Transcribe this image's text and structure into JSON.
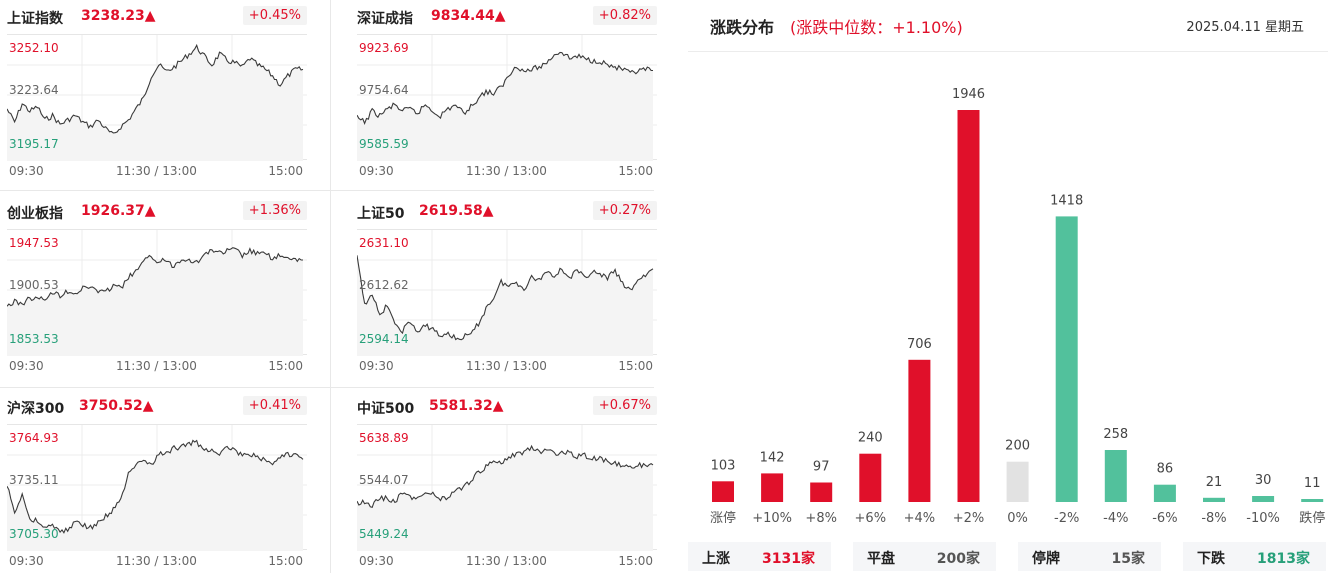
{
  "indices": [
    {
      "name": "上证指数",
      "value": "3238.23▲",
      "change": "+0.45%",
      "high": "3252.10",
      "mid": "3223.64",
      "low": "3195.17",
      "times": [
        "09:30",
        "11:30 / 13:00",
        "15:00"
      ]
    },
    {
      "name": "深证成指",
      "value": "9834.44▲",
      "change": "+0.82%",
      "high": "9923.69",
      "mid": "9754.64",
      "low": "9585.59",
      "times": [
        "09:30",
        "11:30 / 13:00",
        "15:00"
      ]
    },
    {
      "name": "创业板指",
      "value": "1926.37▲",
      "change": "+1.36%",
      "high": "1947.53",
      "mid": "1900.53",
      "low": "1853.53",
      "times": [
        "09:30",
        "11:30 / 13:00",
        "15:00"
      ]
    },
    {
      "name": "上证50",
      "value": "2619.58▲",
      "change": "+0.27%",
      "high": "2631.10",
      "mid": "2612.62",
      "low": "2594.14",
      "times": [
        "09:30",
        "11:30 / 13:00",
        "15:00"
      ]
    },
    {
      "name": "沪深300",
      "value": "3750.52▲",
      "change": "+0.41%",
      "high": "3764.93",
      "mid": "3735.11",
      "low": "3705.30",
      "times": [
        "09:30",
        "11:30 / 13:00",
        "15:00"
      ]
    },
    {
      "name": "中证500",
      "value": "5581.32▲",
      "change": "+0.67%",
      "high": "5638.89",
      "mid": "5544.07",
      "low": "5449.24",
      "times": [
        "09:30",
        "11:30 / 13:00",
        "15:00"
      ]
    }
  ],
  "distribution": {
    "title": "涨跌分布",
    "subtitle": "(涨跌中位数：+1.10%)",
    "date": "2025.04.11 星期五"
  },
  "colors": {
    "up": "#e0102a",
    "down": "#52c19c",
    "flat": "#e2e2e2"
  },
  "chart_data": {
    "type": "bar",
    "categories": [
      "涨停",
      "+10%",
      "+8%",
      "+6%",
      "+4%",
      "+2%",
      "0%",
      "-2%",
      "-4%",
      "-6%",
      "-8%",
      "-10%",
      "跌停"
    ],
    "values": [
      103,
      142,
      97,
      240,
      706,
      1946,
      200,
      1418,
      258,
      86,
      21,
      30,
      11
    ],
    "bar_colors": [
      "up",
      "up",
      "up",
      "up",
      "up",
      "up",
      "flat",
      "down",
      "down",
      "down",
      "down",
      "down",
      "down"
    ],
    "title": "",
    "xlabel": "",
    "ylabel": "",
    "ylim": [
      0,
      1946
    ]
  },
  "summary": {
    "up_label": "上涨",
    "up_value": "3131家",
    "flat_label": "平盘",
    "flat_value": "200家",
    "halt_label": "停牌",
    "halt_value": "15家",
    "down_label": "下跌",
    "down_value": "1813家"
  }
}
